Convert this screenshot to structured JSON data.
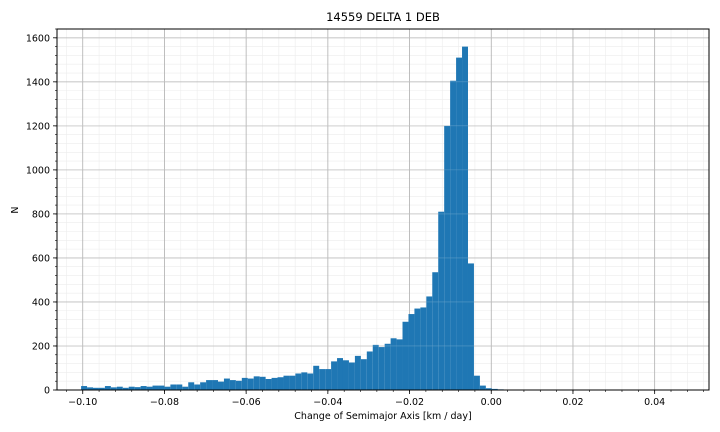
{
  "chart_data": {
    "type": "bar",
    "title": "14559 DELTA 1 DEB",
    "xlabel": "Change of Semimajor Axis [km / day]",
    "ylabel": "N",
    "xlim": [
      -0.1063,
      0.0533
    ],
    "ylim": [
      0,
      1640
    ],
    "xticks": [
      -0.1,
      -0.08,
      -0.06,
      -0.04,
      -0.02,
      0.0,
      0.02,
      0.04
    ],
    "xtick_labels": [
      "−0.10",
      "−0.08",
      "−0.06",
      "−0.04",
      "−0.02",
      "0.00",
      "0.02",
      "0.04"
    ],
    "yticks": [
      0,
      200,
      400,
      600,
      800,
      1000,
      1200,
      1400,
      1600
    ],
    "ytick_labels": [
      "0",
      "200",
      "400",
      "600",
      "800",
      "1000",
      "1200",
      "1400",
      "1600"
    ],
    "grid": true,
    "minor_grid": true,
    "bar_color": "#1f77b4",
    "bin_start": -0.1004,
    "bin_width": 0.001457,
    "counts": [
      18,
      12,
      10,
      10,
      18,
      12,
      15,
      10,
      15,
      13,
      18,
      15,
      20,
      20,
      15,
      25,
      25,
      15,
      35,
      25,
      35,
      45,
      45,
      38,
      52,
      45,
      42,
      55,
      52,
      62,
      60,
      50,
      55,
      58,
      65,
      65,
      75,
      80,
      75,
      110,
      95,
      95,
      130,
      145,
      135,
      125,
      155,
      140,
      175,
      205,
      195,
      210,
      235,
      230,
      310,
      345,
      370,
      375,
      425,
      535,
      810,
      1200,
      1405,
      1510,
      1560,
      575,
      65,
      20,
      8,
      5,
      3
    ]
  }
}
